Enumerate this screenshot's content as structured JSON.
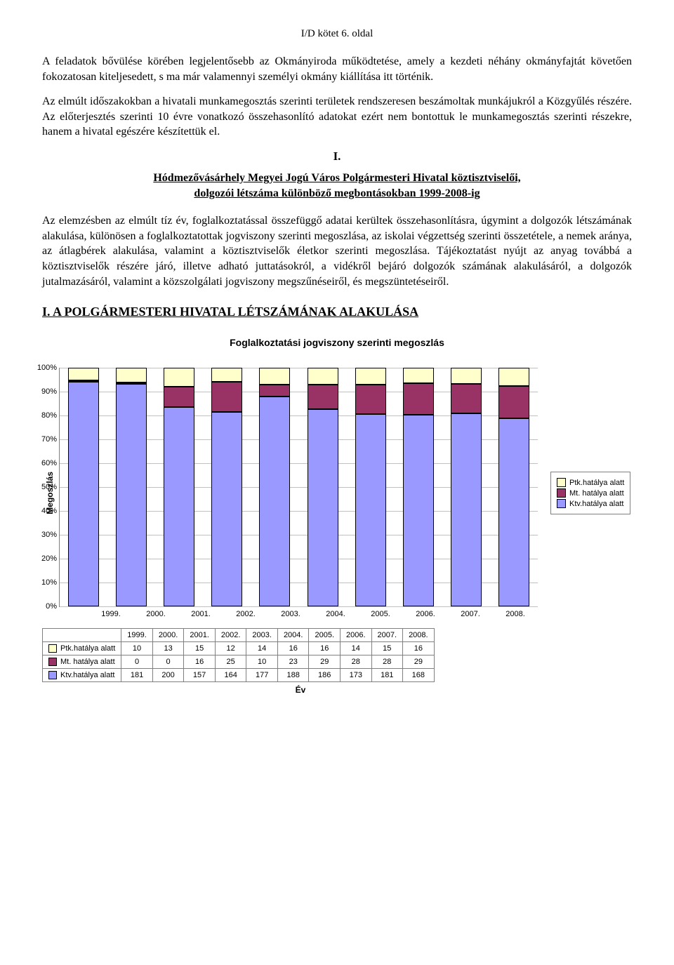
{
  "header": "I/D kötet 6. oldal",
  "para1": "A feladatok bővülése körében legjelentősebb az Okmányiroda működtetése, amely a kezdeti néhány okmányfajtát követően fokozatosan kiteljesedett, s ma már valamennyi személyi okmány kiállítása itt történik.",
  "para2": "Az elmúlt időszakokban a hivatali munkamegosztás szerinti területek rendszeresen beszámoltak munkájukról a Közgyűlés részére. Az előterjesztés szerinti 10 évre vonatkozó összehasonlító adatokat ezért nem bontottuk le munkamegosztás szerinti részekre, hanem a hivatal egészére készítettük el.",
  "roman": "I.",
  "subtitle1": "Hódmezővásárhely Megyei Jogú Város Polgármesteri Hivatal köztisztviselői,",
  "subtitle2": "dolgozói létszáma különböző megbontásokban 1999-2008-ig",
  "para3": "Az elemzésben az elmúlt tíz év, foglalkoztatással összefüggő adatai kerültek összehasonlításra, úgymint a dolgozók létszámának alakulása, különösen a foglalkoztatottak jogviszony szerinti megoszlása, az iskolai végzettség szerinti összetétele, a nemek aránya, az átlagbérek alakulása, valamint a köztisztviselők életkor szerinti megoszlása. Tájékoztatást nyújt az anyag továbbá a köztisztviselők részére járó, illetve adható juttatásokról, a vidékről bejáró dolgozók számának alakulásáról, a dolgozók jutalmazásáról, valamint a közszolgálati jogviszony megszűnéseiről, és megszüntetéseiről.",
  "section": "I. A POLGÁRMESTERI HIVATAL LÉTSZÁMÁNAK ALAKULÁSA",
  "chart": {
    "title": "Foglalkoztatási jogviszony szerinti megoszlás",
    "ylabel": "Megoszlás",
    "xlabel": "Év",
    "yticks": [
      "0%",
      "10%",
      "20%",
      "30%",
      "40%",
      "50%",
      "60%",
      "70%",
      "80%",
      "90%",
      "100%"
    ],
    "categories": [
      "1999.",
      "2000.",
      "2001.",
      "2002.",
      "2003.",
      "2004.",
      "2005.",
      "2006.",
      "2007.",
      "2008."
    ],
    "series": [
      {
        "name": "Ptk.hatálya alatt",
        "color": "#ffffcc",
        "values": [
          10,
          13,
          15,
          12,
          14,
          16,
          16,
          14,
          15,
          16
        ]
      },
      {
        "name": "Mt. hatálya alatt",
        "color": "#993366",
        "values": [
          0,
          0,
          16,
          25,
          10,
          23,
          29,
          28,
          28,
          29
        ]
      },
      {
        "name": "Ktv.hatálya alatt",
        "color": "#9999ff",
        "values": [
          181,
          200,
          157,
          164,
          177,
          188,
          186,
          173,
          181,
          168
        ]
      }
    ],
    "plot_bg": "#ffffff",
    "grid_color": "#c0c0c0"
  }
}
